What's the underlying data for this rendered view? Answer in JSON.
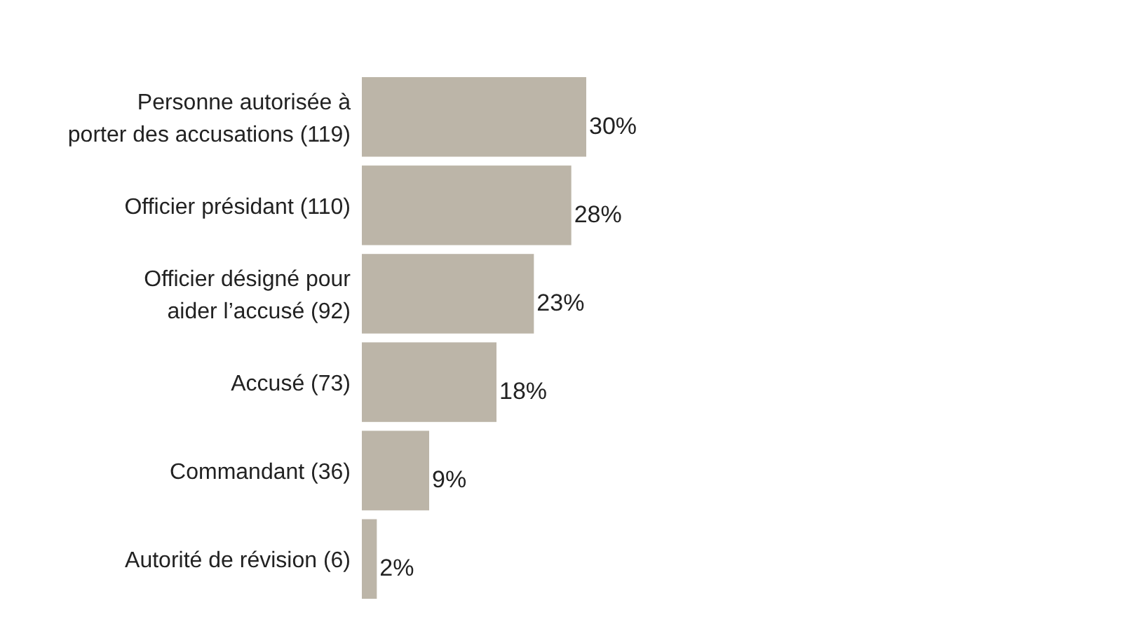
{
  "chart_data": {
    "type": "bar",
    "orientation": "horizontal",
    "categories": [
      "Personne autorisée à\nporter des accusations (119)",
      "Officier présidant (110)",
      "Officier désigné pour\naider l’accusé (92)",
      "Accusé (73)",
      "Commandant (36)",
      "Autorité de révision (6)"
    ],
    "values": [
      30,
      28,
      23,
      18,
      9,
      2
    ],
    "value_labels": [
      "30%",
      "28%",
      "23%",
      "18%",
      "9%",
      "2%"
    ],
    "color": "#bcb5a8"
  }
}
